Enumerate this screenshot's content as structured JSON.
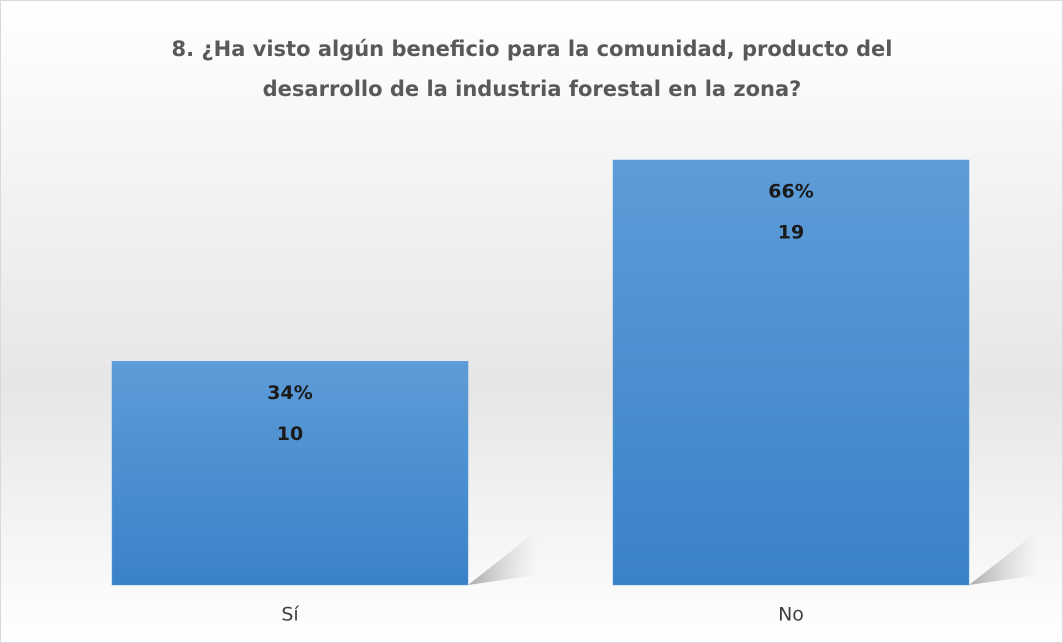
{
  "chart_data": {
    "type": "bar",
    "title": [
      "8. ¿Ha visto algún beneficio para la comunidad, producto del",
      "desarrollo de la industria forestal en la zona?"
    ],
    "categories": [
      "Sí",
      "No"
    ],
    "values": [
      10,
      19
    ],
    "percentages": [
      34,
      66
    ],
    "percentage_labels": [
      "34%",
      "66%"
    ],
    "color": "#5b9bd5"
  }
}
